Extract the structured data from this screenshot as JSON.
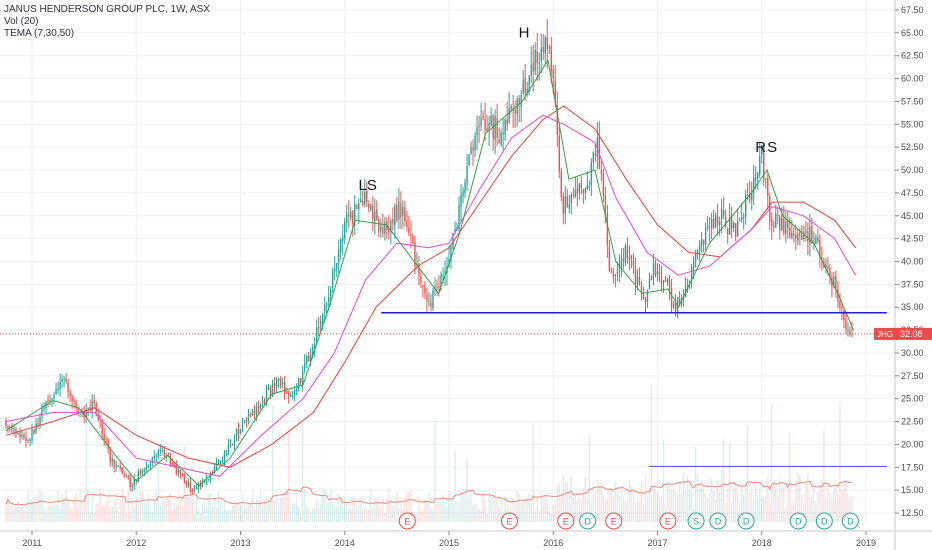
{
  "legend": {
    "title": "JANUS HENDERSON GROUP PLC, 1W, ASX",
    "vol": "Vol (20)",
    "tema": "TEMA (7,30,50)"
  },
  "colors": {
    "up": "#26a69a",
    "down": "#ef5350",
    "tema_fast": "#3a9c4a",
    "tema_mid": "#e34bd6",
    "tema_slow": "#e0453c",
    "neckline": "#1f1fd6",
    "price_line": "#e05050",
    "badge": "#e84c4c",
    "vol_ma": "#f08a7a",
    "grid": "#eef0f3",
    "axis_border": "#c8c8c8"
  },
  "chart_data": {
    "type": "candlestick",
    "symbol": "JHG",
    "last_price": 32.08,
    "last_price_label": "32.08",
    "x_range": [
      2010.75,
      2019.2
    ],
    "y_range": [
      11.0,
      68.5
    ],
    "x_ticks": [
      {
        "t": 2011,
        "label": "2011"
      },
      {
        "t": 2012,
        "label": "2012"
      },
      {
        "t": 2013,
        "label": "2013"
      },
      {
        "t": 2014,
        "label": "2014"
      },
      {
        "t": 2015,
        "label": "2015"
      },
      {
        "t": 2016,
        "label": "2016"
      },
      {
        "t": 2017,
        "label": "2017"
      },
      {
        "t": 2018,
        "label": "2018"
      },
      {
        "t": 2019,
        "label": "2019"
      }
    ],
    "y_ticks": [
      "12.50",
      "15.00",
      "17.50",
      "20.00",
      "22.50",
      "25.00",
      "27.50",
      "30.00",
      "32.50",
      "35.00",
      "37.50",
      "40.00",
      "42.50",
      "45.00",
      "47.50",
      "50.00",
      "52.50",
      "55.00",
      "57.50",
      "60.00",
      "62.50",
      "65.00",
      "67.50"
    ],
    "price_path": [
      [
        2010.75,
        22.5
      ],
      [
        2010.95,
        20.0
      ],
      [
        2011.15,
        25.0
      ],
      [
        2011.3,
        27.0
      ],
      [
        2011.45,
        23.0
      ],
      [
        2011.6,
        24.5
      ],
      [
        2011.75,
        18.5
      ],
      [
        2011.95,
        15.5
      ],
      [
        2012.1,
        18.0
      ],
      [
        2012.25,
        19.5
      ],
      [
        2012.4,
        17.0
      ],
      [
        2012.55,
        14.8
      ],
      [
        2012.7,
        16.5
      ],
      [
        2012.85,
        19.0
      ],
      [
        2013.0,
        22.0
      ],
      [
        2013.2,
        24.5
      ],
      [
        2013.35,
        27.0
      ],
      [
        2013.5,
        25.0
      ],
      [
        2013.7,
        31.0
      ],
      [
        2013.85,
        37.0
      ],
      [
        2014.0,
        44.0
      ],
      [
        2014.2,
        47.0
      ],
      [
        2014.35,
        43.0
      ],
      [
        2014.55,
        46.0
      ],
      [
        2014.7,
        39.0
      ],
      [
        2014.8,
        35.0
      ],
      [
        2014.95,
        39.0
      ],
      [
        2015.05,
        43.0
      ],
      [
        2015.15,
        49.0
      ],
      [
        2015.3,
        56.0
      ],
      [
        2015.5,
        54.0
      ],
      [
        2015.65,
        58.0
      ],
      [
        2015.8,
        61.0
      ],
      [
        2015.92,
        64.5
      ],
      [
        2016.0,
        60.0
      ],
      [
        2016.08,
        46.0
      ],
      [
        2016.2,
        47.0
      ],
      [
        2016.35,
        49.0
      ],
      [
        2016.42,
        53.0
      ],
      [
        2016.5,
        45.0
      ],
      [
        2016.55,
        38.0
      ],
      [
        2016.7,
        41.0
      ],
      [
        2016.8,
        38.0
      ],
      [
        2016.88,
        34.5
      ],
      [
        2016.95,
        39.0
      ],
      [
        2017.1,
        38.0
      ],
      [
        2017.15,
        34.5
      ],
      [
        2017.3,
        38.0
      ],
      [
        2017.45,
        43.0
      ],
      [
        2017.6,
        45.0
      ],
      [
        2017.75,
        43.0
      ],
      [
        2017.9,
        48.0
      ],
      [
        2018.0,
        51.5
      ],
      [
        2018.08,
        45.0
      ],
      [
        2018.2,
        44.0
      ],
      [
        2018.35,
        42.0
      ],
      [
        2018.5,
        43.0
      ],
      [
        2018.62,
        39.0
      ],
      [
        2018.72,
        37.0
      ],
      [
        2018.8,
        33.0
      ],
      [
        2018.88,
        32.08
      ]
    ],
    "tema_fast_path": [
      [
        2010.75,
        21.5
      ],
      [
        2011.2,
        24.8
      ],
      [
        2011.45,
        24.0
      ],
      [
        2011.8,
        18.8
      ],
      [
        2012.0,
        16.0
      ],
      [
        2012.3,
        18.8
      ],
      [
        2012.6,
        15.5
      ],
      [
        2012.9,
        18.5
      ],
      [
        2013.3,
        25.5
      ],
      [
        2013.6,
        26.5
      ],
      [
        2013.85,
        35.0
      ],
      [
        2014.1,
        44.5
      ],
      [
        2014.4,
        44.0
      ],
      [
        2014.7,
        39.5
      ],
      [
        2014.9,
        36.5
      ],
      [
        2015.1,
        43.0
      ],
      [
        2015.35,
        54.0
      ],
      [
        2015.7,
        57.5
      ],
      [
        2015.95,
        62.0
      ],
      [
        2016.15,
        49.0
      ],
      [
        2016.4,
        50.0
      ],
      [
        2016.6,
        40.0
      ],
      [
        2016.85,
        36.5
      ],
      [
        2017.1,
        37.0
      ],
      [
        2017.2,
        35.0
      ],
      [
        2017.5,
        42.0
      ],
      [
        2017.9,
        47.5
      ],
      [
        2018.05,
        50.0
      ],
      [
        2018.2,
        45.0
      ],
      [
        2018.5,
        42.0
      ],
      [
        2018.75,
        36.0
      ],
      [
        2018.88,
        32.5
      ]
    ],
    "tema_mid_path": [
      [
        2010.75,
        22.5
      ],
      [
        2011.2,
        23.5
      ],
      [
        2011.6,
        23.5
      ],
      [
        2012.0,
        18.5
      ],
      [
        2012.4,
        17.5
      ],
      [
        2012.8,
        16.5
      ],
      [
        2013.2,
        21.0
      ],
      [
        2013.6,
        25.0
      ],
      [
        2013.9,
        30.0
      ],
      [
        2014.2,
        38.0
      ],
      [
        2014.5,
        42.0
      ],
      [
        2014.8,
        41.5
      ],
      [
        2015.0,
        42.0
      ],
      [
        2015.3,
        48.0
      ],
      [
        2015.6,
        53.5
      ],
      [
        2015.9,
        56.0
      ],
      [
        2016.1,
        55.0
      ],
      [
        2016.4,
        53.0
      ],
      [
        2016.6,
        47.0
      ],
      [
        2016.9,
        41.0
      ],
      [
        2017.2,
        38.5
      ],
      [
        2017.5,
        39.5
      ],
      [
        2017.9,
        43.5
      ],
      [
        2018.1,
        46.0
      ],
      [
        2018.4,
        45.0
      ],
      [
        2018.7,
        42.5
      ],
      [
        2018.9,
        38.5
      ]
    ],
    "tema_slow_path": [
      [
        2010.75,
        21.0
      ],
      [
        2011.2,
        22.5
      ],
      [
        2011.6,
        24.0
      ],
      [
        2012.0,
        21.0
      ],
      [
        2012.5,
        18.5
      ],
      [
        2012.9,
        17.5
      ],
      [
        2013.3,
        20.0
      ],
      [
        2013.7,
        23.5
      ],
      [
        2014.0,
        29.0
      ],
      [
        2014.3,
        35.0
      ],
      [
        2014.7,
        39.5
      ],
      [
        2015.0,
        41.5
      ],
      [
        2015.3,
        46.5
      ],
      [
        2015.6,
        51.5
      ],
      [
        2015.9,
        55.5
      ],
      [
        2016.1,
        57.0
      ],
      [
        2016.4,
        54.5
      ],
      [
        2016.7,
        49.0
      ],
      [
        2017.0,
        44.0
      ],
      [
        2017.3,
        41.0
      ],
      [
        2017.6,
        40.5
      ],
      [
        2017.9,
        43.5
      ],
      [
        2018.1,
        46.5
      ],
      [
        2018.4,
        46.5
      ],
      [
        2018.7,
        44.5
      ],
      [
        2018.9,
        41.5
      ]
    ],
    "neckline": {
      "x0": 2014.35,
      "x1": 2019.2,
      "y": 34.4
    },
    "volume_ref_line": {
      "x0": 2016.92,
      "x1": 2019.2,
      "y": 17.6
    },
    "annotations": [
      {
        "text": "LS",
        "t": 2014.22,
        "y": 47.8
      },
      {
        "text": "H",
        "t": 2015.72,
        "y": 64.5
      },
      {
        "text": "R",
        "t": 2017.99,
        "y": 52.0
      },
      {
        "text": "S",
        "t": 2018.1,
        "y": 52.0
      }
    ],
    "events": [
      {
        "label": "E",
        "t": 2014.6,
        "kind": "earnings"
      },
      {
        "label": "E",
        "t": 2015.58,
        "kind": "earnings"
      },
      {
        "label": "E",
        "t": 2016.12,
        "kind": "earnings"
      },
      {
        "label": "D",
        "t": 2016.33,
        "kind": "dividend"
      },
      {
        "label": "E",
        "t": 2016.58,
        "kind": "earnings"
      },
      {
        "label": "E",
        "t": 2017.1,
        "kind": "earnings"
      },
      {
        "label": "S",
        "t": 2017.37,
        "kind": "split"
      },
      {
        "label": "D",
        "t": 2017.58,
        "kind": "dividend"
      },
      {
        "label": "D",
        "t": 2017.85,
        "kind": "dividend"
      },
      {
        "label": "D",
        "t": 2018.35,
        "kind": "dividend"
      },
      {
        "label": "D",
        "t": 2018.6,
        "kind": "dividend"
      },
      {
        "label": "D",
        "t": 2018.85,
        "kind": "dividend"
      }
    ]
  }
}
